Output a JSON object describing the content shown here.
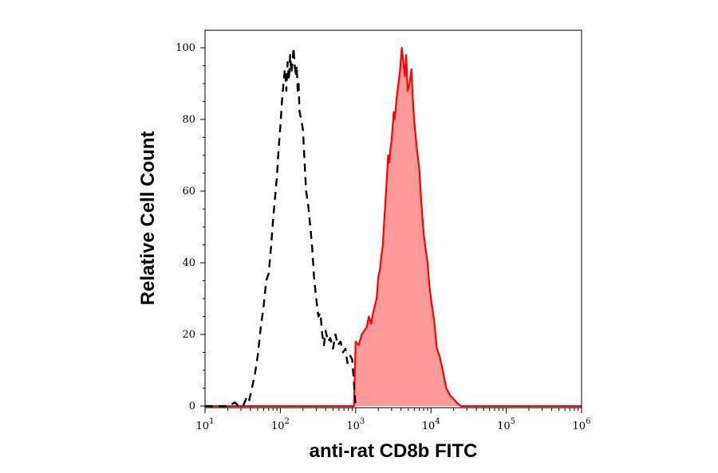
{
  "chart_data": {
    "type": "area",
    "title": "",
    "xlabel": "anti-rat CD8b FITC",
    "ylabel": "Relative Cell Count",
    "x_scale": "log",
    "xlim": [
      10,
      1000000
    ],
    "ylim": [
      0,
      100
    ],
    "x_ticks": [
      {
        "value": 10,
        "base": "10",
        "exp": "1"
      },
      {
        "value": 100,
        "base": "10",
        "exp": "2"
      },
      {
        "value": 1000,
        "base": "10",
        "exp": "3"
      },
      {
        "value": 10000,
        "base": "10",
        "exp": "4"
      },
      {
        "value": 100000,
        "base": "10",
        "exp": "5"
      },
      {
        "value": 1000000,
        "base": "10",
        "exp": "6"
      }
    ],
    "y_ticks": [
      0,
      20,
      40,
      60,
      80,
      100
    ],
    "grid": false,
    "legend": "none",
    "series": [
      {
        "style": "dashed-line",
        "color": "#000000",
        "points": [
          [
            10,
            0
          ],
          [
            20,
            0
          ],
          [
            25,
            1
          ],
          [
            28,
            0
          ],
          [
            32,
            0
          ],
          [
            35,
            2
          ],
          [
            38,
            1
          ],
          [
            42,
            5
          ],
          [
            46,
            9
          ],
          [
            50,
            14
          ],
          [
            55,
            22
          ],
          [
            60,
            28
          ],
          [
            65,
            35
          ],
          [
            70,
            37
          ],
          [
            75,
            44
          ],
          [
            80,
            52
          ],
          [
            85,
            58
          ],
          [
            90,
            64
          ],
          [
            95,
            72
          ],
          [
            100,
            78
          ],
          [
            105,
            85
          ],
          [
            110,
            90
          ],
          [
            115,
            94
          ],
          [
            120,
            88
          ],
          [
            125,
            96
          ],
          [
            130,
            91
          ],
          [
            135,
            98
          ],
          [
            140,
            93
          ],
          [
            145,
            96
          ],
          [
            150,
            100
          ],
          [
            155,
            95
          ],
          [
            160,
            92
          ],
          [
            165,
            95
          ],
          [
            170,
            88
          ],
          [
            175,
            90
          ],
          [
            180,
            82
          ],
          [
            190,
            80
          ],
          [
            200,
            77
          ],
          [
            210,
            68
          ],
          [
            220,
            60
          ],
          [
            235,
            56
          ],
          [
            250,
            50
          ],
          [
            265,
            44
          ],
          [
            280,
            36
          ],
          [
            300,
            30
          ],
          [
            320,
            25
          ],
          [
            340,
            26
          ],
          [
            360,
            20
          ],
          [
            380,
            17
          ],
          [
            400,
            21
          ],
          [
            430,
            18
          ],
          [
            460,
            19
          ],
          [
            500,
            16
          ],
          [
            540,
            20
          ],
          [
            580,
            17
          ],
          [
            630,
            18
          ],
          [
            680,
            15
          ],
          [
            730,
            16
          ],
          [
            780,
            12
          ],
          [
            850,
            14
          ],
          [
            900,
            13
          ],
          [
            1000,
            0
          ]
        ]
      },
      {
        "style": "filled-area",
        "color": "#ff0000",
        "fill": "#ff9a9a",
        "points": [
          [
            10,
            0
          ],
          [
            900,
            0
          ],
          [
            950,
            0
          ],
          [
            1000,
            18
          ],
          [
            1100,
            17
          ],
          [
            1200,
            20
          ],
          [
            1300,
            21
          ],
          [
            1400,
            22
          ],
          [
            1500,
            25
          ],
          [
            1600,
            23
          ],
          [
            1700,
            26
          ],
          [
            1800,
            28
          ],
          [
            1900,
            30
          ],
          [
            2000,
            36
          ],
          [
            2100,
            38
          ],
          [
            2200,
            42
          ],
          [
            2300,
            45
          ],
          [
            2400,
            52
          ],
          [
            2500,
            58
          ],
          [
            2600,
            64
          ],
          [
            2700,
            70
          ],
          [
            2800,
            68
          ],
          [
            2900,
            72
          ],
          [
            3000,
            74
          ],
          [
            3100,
            78
          ],
          [
            3200,
            82
          ],
          [
            3300,
            80
          ],
          [
            3500,
            86
          ],
          [
            3700,
            90
          ],
          [
            3900,
            94
          ],
          [
            4100,
            100
          ],
          [
            4300,
            96
          ],
          [
            4500,
            92
          ],
          [
            4700,
            98
          ],
          [
            4900,
            88
          ],
          [
            5200,
            90
          ],
          [
            5500,
            94
          ],
          [
            5800,
            84
          ],
          [
            6100,
            78
          ],
          [
            6500,
            72
          ],
          [
            7000,
            66
          ],
          [
            7500,
            56
          ],
          [
            8000,
            48
          ],
          [
            8500,
            44
          ],
          [
            9000,
            40
          ],
          [
            9500,
            34
          ],
          [
            10000,
            30
          ],
          [
            11000,
            24
          ],
          [
            12000,
            16
          ],
          [
            13000,
            14
          ],
          [
            14000,
            11
          ],
          [
            15000,
            8
          ],
          [
            16000,
            5
          ],
          [
            18000,
            3
          ],
          [
            20000,
            2
          ],
          [
            22000,
            1
          ],
          [
            25000,
            0
          ],
          [
            1000000,
            0
          ]
        ]
      }
    ]
  }
}
